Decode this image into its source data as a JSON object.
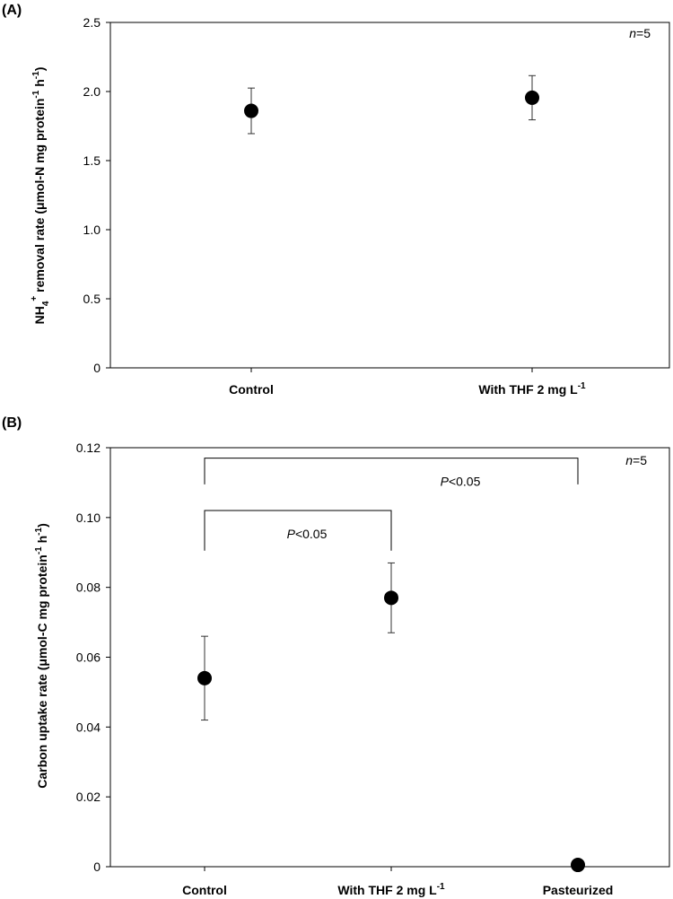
{
  "chart_data": [
    {
      "type": "scatter",
      "panel_label": "(A)",
      "ylabel_main": "NH",
      "ylabel_sub": "4",
      "ylabel_sup": "+",
      "ylabel_rest": " removal rate (μmol-N mg protein",
      "ylabel_sup2": "-1",
      "ylabel_h": " h",
      "ylabel_sup3": "-1",
      "ylabel_close": ")",
      "ylim": [
        0,
        2.5
      ],
      "yticks": [
        0,
        0.5,
        1.0,
        1.5,
        2.0,
        2.5
      ],
      "ytick_labels": [
        "0",
        "0.5",
        "1.0",
        "1.5",
        "2.0",
        "2.5"
      ],
      "categories": [
        {
          "main": "Control",
          "sup": ""
        },
        {
          "main": "With THF 2 mg L",
          "sup": "-1"
        }
      ],
      "values": [
        1.86,
        1.955
      ],
      "errors": [
        0.165,
        0.16
      ],
      "n_note_italic": "n",
      "n_note_rest": "=5",
      "brackets": []
    },
    {
      "type": "scatter",
      "panel_label": "(B)",
      "ylabel_main": "Carbon uptake rate (μmol-C mg protein",
      "ylabel_sup2": "-1",
      "ylabel_h": " h",
      "ylabel_sup3": "-1",
      "ylabel_close": ")",
      "ylim": [
        0,
        0.12
      ],
      "yticks": [
        0,
        0.02,
        0.04,
        0.06,
        0.08,
        0.1,
        0.12
      ],
      "ytick_labels": [
        "0",
        "0.02",
        "0.04",
        "0.06",
        "0.08",
        "0.10",
        "0.12"
      ],
      "categories": [
        {
          "main": "Control",
          "sup": ""
        },
        {
          "main": "With THF 2 mg L",
          "sup": "-1"
        },
        {
          "main": "Pasteurized",
          "sup": ""
        }
      ],
      "values": [
        0.054,
        0.077,
        0.0005
      ],
      "errors": [
        0.012,
        0.01,
        0
      ],
      "n_note_italic": "n",
      "n_note_rest": "=5",
      "brackets": [
        {
          "from": 0,
          "to": 2,
          "level": 0.117,
          "drop": 0.0075,
          "label_italic": "P",
          "label_rest": "<0.05"
        },
        {
          "from": 0,
          "to": 1,
          "level": 0.102,
          "drop": 0.0115,
          "label_italic": "P",
          "label_rest": "<0.05"
        }
      ]
    }
  ]
}
